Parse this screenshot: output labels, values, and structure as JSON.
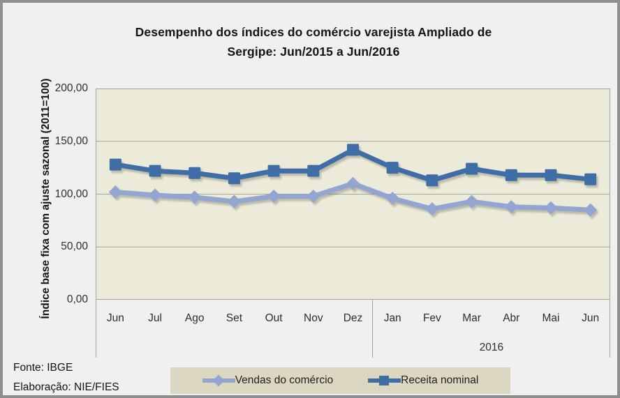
{
  "chart_data": {
    "type": "line",
    "title": "Desempenho dos índices do comércio varejista Ampliado de Sergipe: Jun/2015 a Jun/2016",
    "title_lines": [
      "Desempenho dos índices do comércio varejista Ampliado de",
      "Sergipe: Jun/2015 a Jun/2016"
    ],
    "ylabel": "Índice base fixa com ajuste sazonal (2011=100)",
    "xlabel": "",
    "ylim": [
      0,
      200
    ],
    "y_ticks": [
      {
        "value": 200,
        "label": "200,00"
      },
      {
        "value": 150,
        "label": "150,00"
      },
      {
        "value": 100,
        "label": "100,00"
      },
      {
        "value": 50,
        "label": "50,00"
      },
      {
        "value": 0,
        "label": "0,00"
      }
    ],
    "grid": true,
    "legend_position": "bottom",
    "categories": [
      "Jun",
      "Jul",
      "Ago",
      "Set",
      "Out",
      "Nov",
      "Dez",
      "Jan",
      "Fev",
      "Mar",
      "Abr",
      "Mai",
      "Jun"
    ],
    "year_label": "2016",
    "year_group_start_index": 7,
    "series": [
      {
        "name": "Vendas do comércio",
        "marker": "diamond",
        "color": "#93a5d1",
        "values": [
          102,
          99,
          97,
          93,
          98,
          98,
          110,
          96,
          86,
          93,
          88,
          87,
          85
        ]
      },
      {
        "name": "Receita nominal",
        "marker": "square",
        "color": "#3f6ea7",
        "values": [
          128,
          122,
          120,
          115,
          122,
          122,
          142,
          125,
          113,
          124,
          118,
          118,
          114
        ]
      }
    ]
  },
  "footer": {
    "source": "Fonte: IBGE",
    "elaboration": "Elaboração: NIE/FIES"
  },
  "colors": {
    "outer_bg": "#f0f0f0",
    "border": "#8f8f8f",
    "plot_bg": "#ecead9",
    "legend_bg": "#dbd7c1",
    "grid": "#a6a39b",
    "shadow": "#6e6c5e",
    "text": "#2e2e2e"
  }
}
